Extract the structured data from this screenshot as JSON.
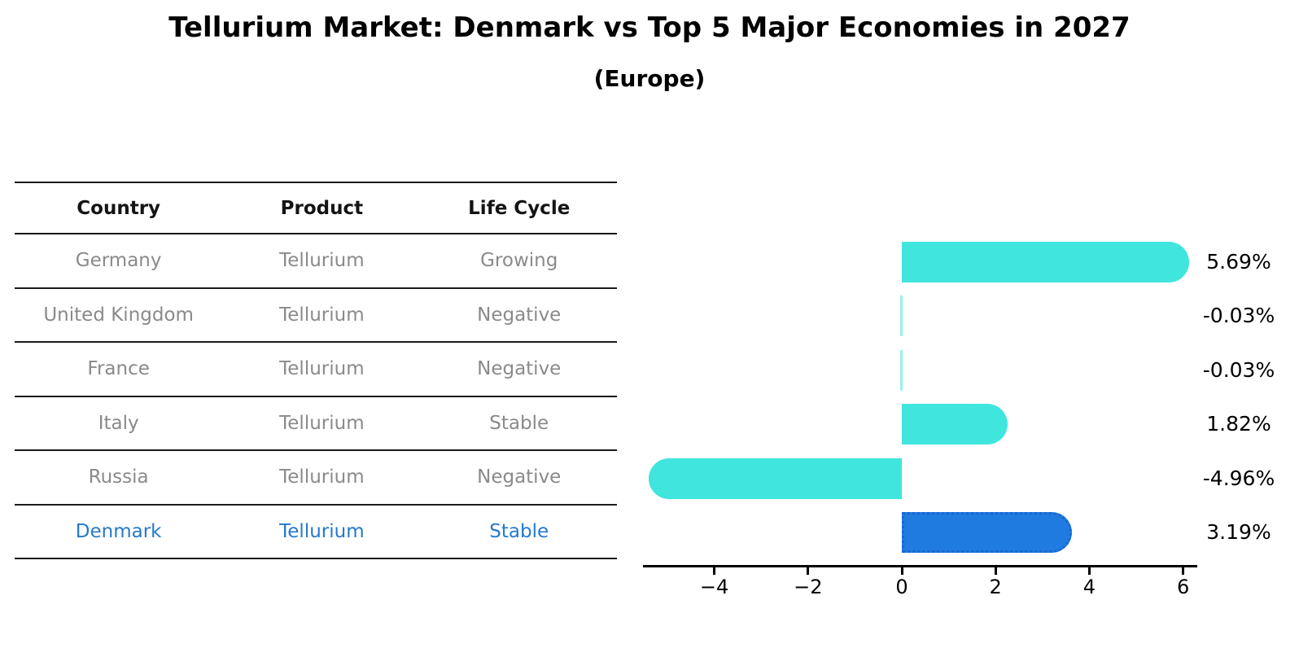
{
  "title": "Tellurium Market: Denmark vs Top 5 Major Economies in 2027",
  "subtitle": "(Europe)",
  "table": {
    "headers": [
      "Country",
      "Product",
      "Life Cycle"
    ],
    "rows": [
      {
        "country": "Germany",
        "product": "Tellurium",
        "life_cycle": "Growing",
        "highlight": false
      },
      {
        "country": "United Kingdom",
        "product": "Tellurium",
        "life_cycle": "Negative",
        "highlight": false
      },
      {
        "country": "France",
        "product": "Tellurium",
        "life_cycle": "Negative",
        "highlight": false
      },
      {
        "country": "Italy",
        "product": "Tellurium",
        "life_cycle": "Stable",
        "highlight": false
      },
      {
        "country": "Russia",
        "product": "Tellurium",
        "life_cycle": "Negative",
        "highlight": false
      },
      {
        "country": "Denmark",
        "product": "Tellurium",
        "life_cycle": "Stable",
        "highlight": true
      }
    ]
  },
  "chart_data": {
    "type": "bar",
    "orientation": "horizontal",
    "title": "Tellurium Market: Denmark vs Top 5 Major Economies in 2027",
    "subtitle": "(Europe)",
    "categories": [
      "Germany",
      "United Kingdom",
      "France",
      "Italy",
      "Russia",
      "Denmark"
    ],
    "values": [
      5.69,
      -0.03,
      -0.03,
      1.82,
      -4.96,
      3.19
    ],
    "value_labels": [
      "5.69%",
      "-0.03%",
      "-0.03%",
      "1.82%",
      "-4.96%",
      "3.19%"
    ],
    "xlim": [
      -5.6,
      6.3
    ],
    "xticks": [
      -4,
      -2,
      0,
      2,
      4,
      6
    ],
    "xtick_labels": [
      "−4",
      "−2",
      "0",
      "2",
      "4",
      "6"
    ],
    "grid": false,
    "legend": "none",
    "highlight_index": 5
  },
  "colors": {
    "bar": "#40E5DD",
    "highlight_bar": "#1F7BE0",
    "highlight_bar_border": "#1866D2",
    "highlight_text": "#2579CE",
    "table_text": "#8A8A8A",
    "table_line": "#1A1A1A"
  }
}
